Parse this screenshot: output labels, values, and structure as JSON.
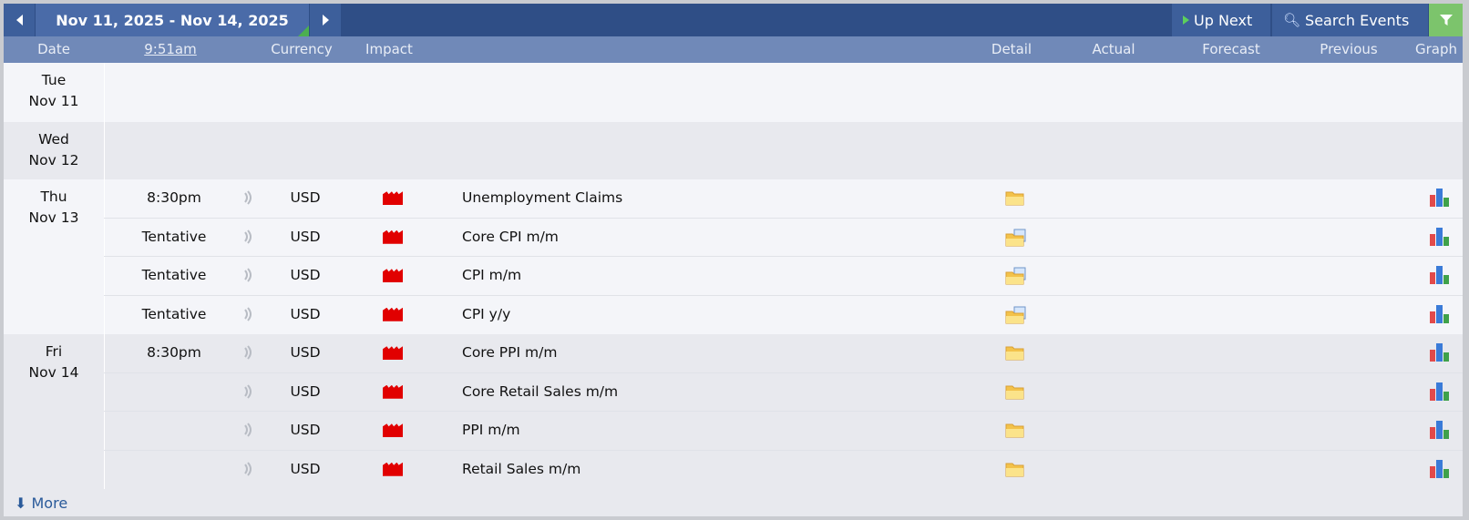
{
  "toolbar": {
    "date_range": "Nov 11, 2025 - Nov 14, 2025",
    "up_next": "Up Next",
    "search": "Search Events",
    "prev_icon": "triangle-left",
    "next_icon": "triangle-right",
    "filter_icon": "funnel"
  },
  "columns": {
    "date": "Date",
    "time": "9:51am",
    "currency": "Currency",
    "impact": "Impact",
    "detail": "Detail",
    "actual": "Actual",
    "forecast": "Forecast",
    "previous": "Previous",
    "graph": "Graph"
  },
  "days": [
    {
      "day": "Tue",
      "date": "Nov 11"
    },
    {
      "day": "Wed",
      "date": "Nov 12"
    },
    {
      "day": "Thu",
      "date": "Nov 13"
    },
    {
      "day": "Fri",
      "date": "Nov 14"
    }
  ],
  "events": [
    {
      "time": "8:30pm",
      "currency": "USD",
      "impact": "high",
      "event": "Unemployment Claims",
      "detail_icon": "folder"
    },
    {
      "time": "Tentative",
      "currency": "USD",
      "impact": "high",
      "event": "Core CPI m/m",
      "detail_icon": "folder-doc"
    },
    {
      "time": "Tentative",
      "currency": "USD",
      "impact": "high",
      "event": "CPI m/m",
      "detail_icon": "folder-doc"
    },
    {
      "time": "Tentative",
      "currency": "USD",
      "impact": "high",
      "event": "CPI y/y",
      "detail_icon": "folder-doc"
    },
    {
      "time": "8:30pm",
      "currency": "USD",
      "impact": "high",
      "event": "Core PPI m/m",
      "detail_icon": "folder"
    },
    {
      "time": "",
      "currency": "USD",
      "impact": "high",
      "event": "Core Retail Sales m/m",
      "detail_icon": "folder"
    },
    {
      "time": "",
      "currency": "USD",
      "impact": "high",
      "event": "PPI m/m",
      "detail_icon": "folder"
    },
    {
      "time": "",
      "currency": "USD",
      "impact": "high",
      "event": "Retail Sales m/m",
      "detail_icon": "folder"
    }
  ],
  "more_label": "More",
  "colors": {
    "impact_high": "#e10000",
    "topbar": "#2f4e86",
    "header": "#7089b8",
    "filter": "#7cc46c"
  }
}
